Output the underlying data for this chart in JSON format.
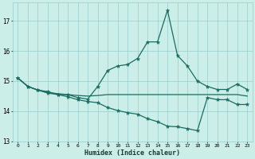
{
  "xlabel": "Humidex (Indice chaleur)",
  "bg_color": "#cceee8",
  "grid_color": "#99cccc",
  "line_color": "#1a6b60",
  "xlim": [
    -0.5,
    23.5
  ],
  "ylim": [
    13.0,
    17.6
  ],
  "yticks": [
    13,
    14,
    15,
    16,
    17
  ],
  "xticks": [
    0,
    1,
    2,
    3,
    4,
    5,
    6,
    7,
    8,
    9,
    10,
    11,
    12,
    13,
    14,
    15,
    16,
    17,
    18,
    19,
    20,
    21,
    22,
    23
  ],
  "line1_x": [
    0,
    1,
    2,
    3,
    4,
    5,
    6,
    7,
    8,
    9,
    10,
    11,
    12,
    13,
    14,
    15,
    16,
    17,
    18,
    19,
    20,
    21,
    22,
    23
  ],
  "line1_y": [
    15.1,
    14.82,
    14.7,
    14.65,
    14.55,
    14.55,
    14.45,
    14.4,
    14.82,
    15.35,
    15.5,
    15.55,
    15.75,
    16.3,
    16.3,
    17.35,
    15.85,
    15.5,
    15.0,
    14.82,
    14.72,
    14.72,
    14.9,
    14.72
  ],
  "line2_x": [
    0,
    1,
    2,
    3,
    4,
    5,
    6,
    7,
    8,
    9,
    10,
    11,
    12,
    13,
    14,
    15,
    16,
    17,
    18,
    19,
    20,
    21,
    22,
    23
  ],
  "line2_y": [
    15.1,
    14.82,
    14.7,
    14.62,
    14.58,
    14.55,
    14.52,
    14.5,
    14.52,
    14.55,
    14.55,
    14.55,
    14.55,
    14.55,
    14.55,
    14.55,
    14.55,
    14.55,
    14.55,
    14.55,
    14.55,
    14.55,
    14.55,
    14.5
  ],
  "line3_x": [
    0,
    1,
    2,
    3,
    4,
    5,
    6,
    7,
    8,
    9,
    10,
    11,
    12,
    13,
    14,
    15,
    16,
    17,
    18,
    19,
    20,
    21,
    22,
    23
  ],
  "line3_y": [
    15.1,
    14.82,
    14.7,
    14.6,
    14.55,
    14.48,
    14.38,
    14.32,
    14.28,
    14.12,
    14.02,
    13.95,
    13.9,
    13.75,
    13.65,
    13.5,
    13.48,
    13.42,
    13.35,
    14.45,
    14.38,
    14.38,
    14.22,
    14.22
  ]
}
